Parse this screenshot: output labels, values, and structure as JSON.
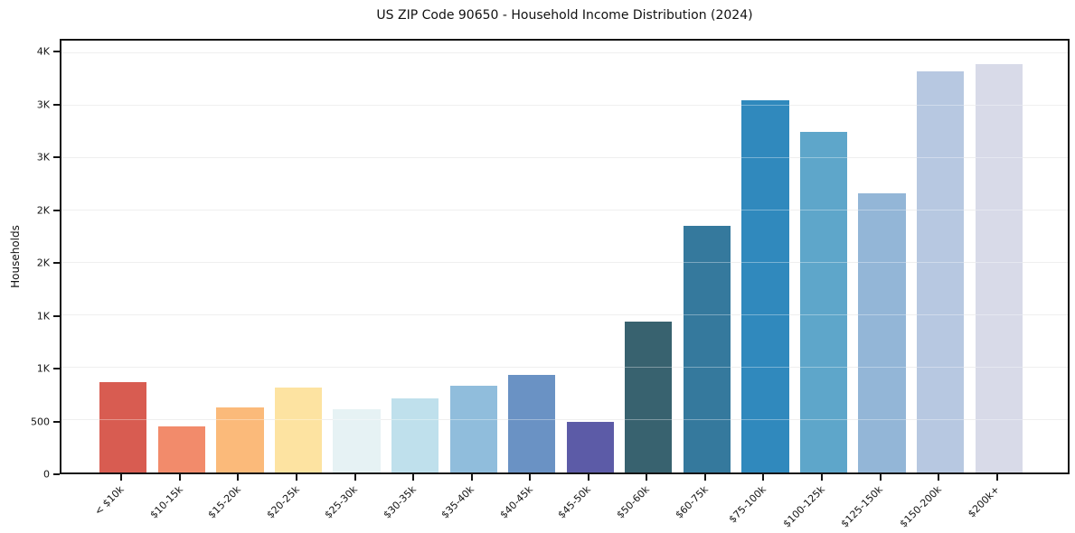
{
  "chart_data": {
    "type": "bar",
    "title": "US ZIP Code 90650 - Household Income Distribution (2024)",
    "xlabel": "",
    "ylabel": "Households",
    "categories": [
      "< $10k",
      "$10-15k",
      "$15-20k",
      "$20-25k",
      "$25-30k",
      "$30-35k",
      "$35-40k",
      "$40-45k",
      "$45-50k",
      "$50-60k",
      "$60-75k",
      "$75-100k",
      "$100-125k",
      "$125-150k",
      "$150-200k",
      "$200k+"
    ],
    "values": [
      860,
      440,
      620,
      810,
      600,
      710,
      830,
      930,
      480,
      1440,
      2350,
      3550,
      3250,
      2660,
      3830,
      3900
    ],
    "bar_colors": [
      "#d85c51",
      "#f28b6b",
      "#fbba7a",
      "#fde3a1",
      "#e6f2f4",
      "#bfe0ec",
      "#90bddc",
      "#6a92c4",
      "#5c5ba7",
      "#38626f",
      "#35799d",
      "#3089bd",
      "#5ea6ca",
      "#93b6d7",
      "#b7c8e1",
      "#d8dae8"
    ],
    "ylim": [
      0,
      4120
    ],
    "ytick_values": [
      0,
      500,
      1000,
      1500,
      2000,
      2500,
      3000,
      3500,
      4000
    ],
    "ytick_labels": [
      "0",
      "500",
      "1K",
      "1K",
      "2K",
      "2K",
      "3K",
      "3K",
      "4K"
    ],
    "grid": true,
    "legend_position": "none",
    "colors": {
      "spine": "#141414",
      "gridline": "#e7e7e7",
      "background": "#ffffff",
      "text": "#111111"
    }
  }
}
